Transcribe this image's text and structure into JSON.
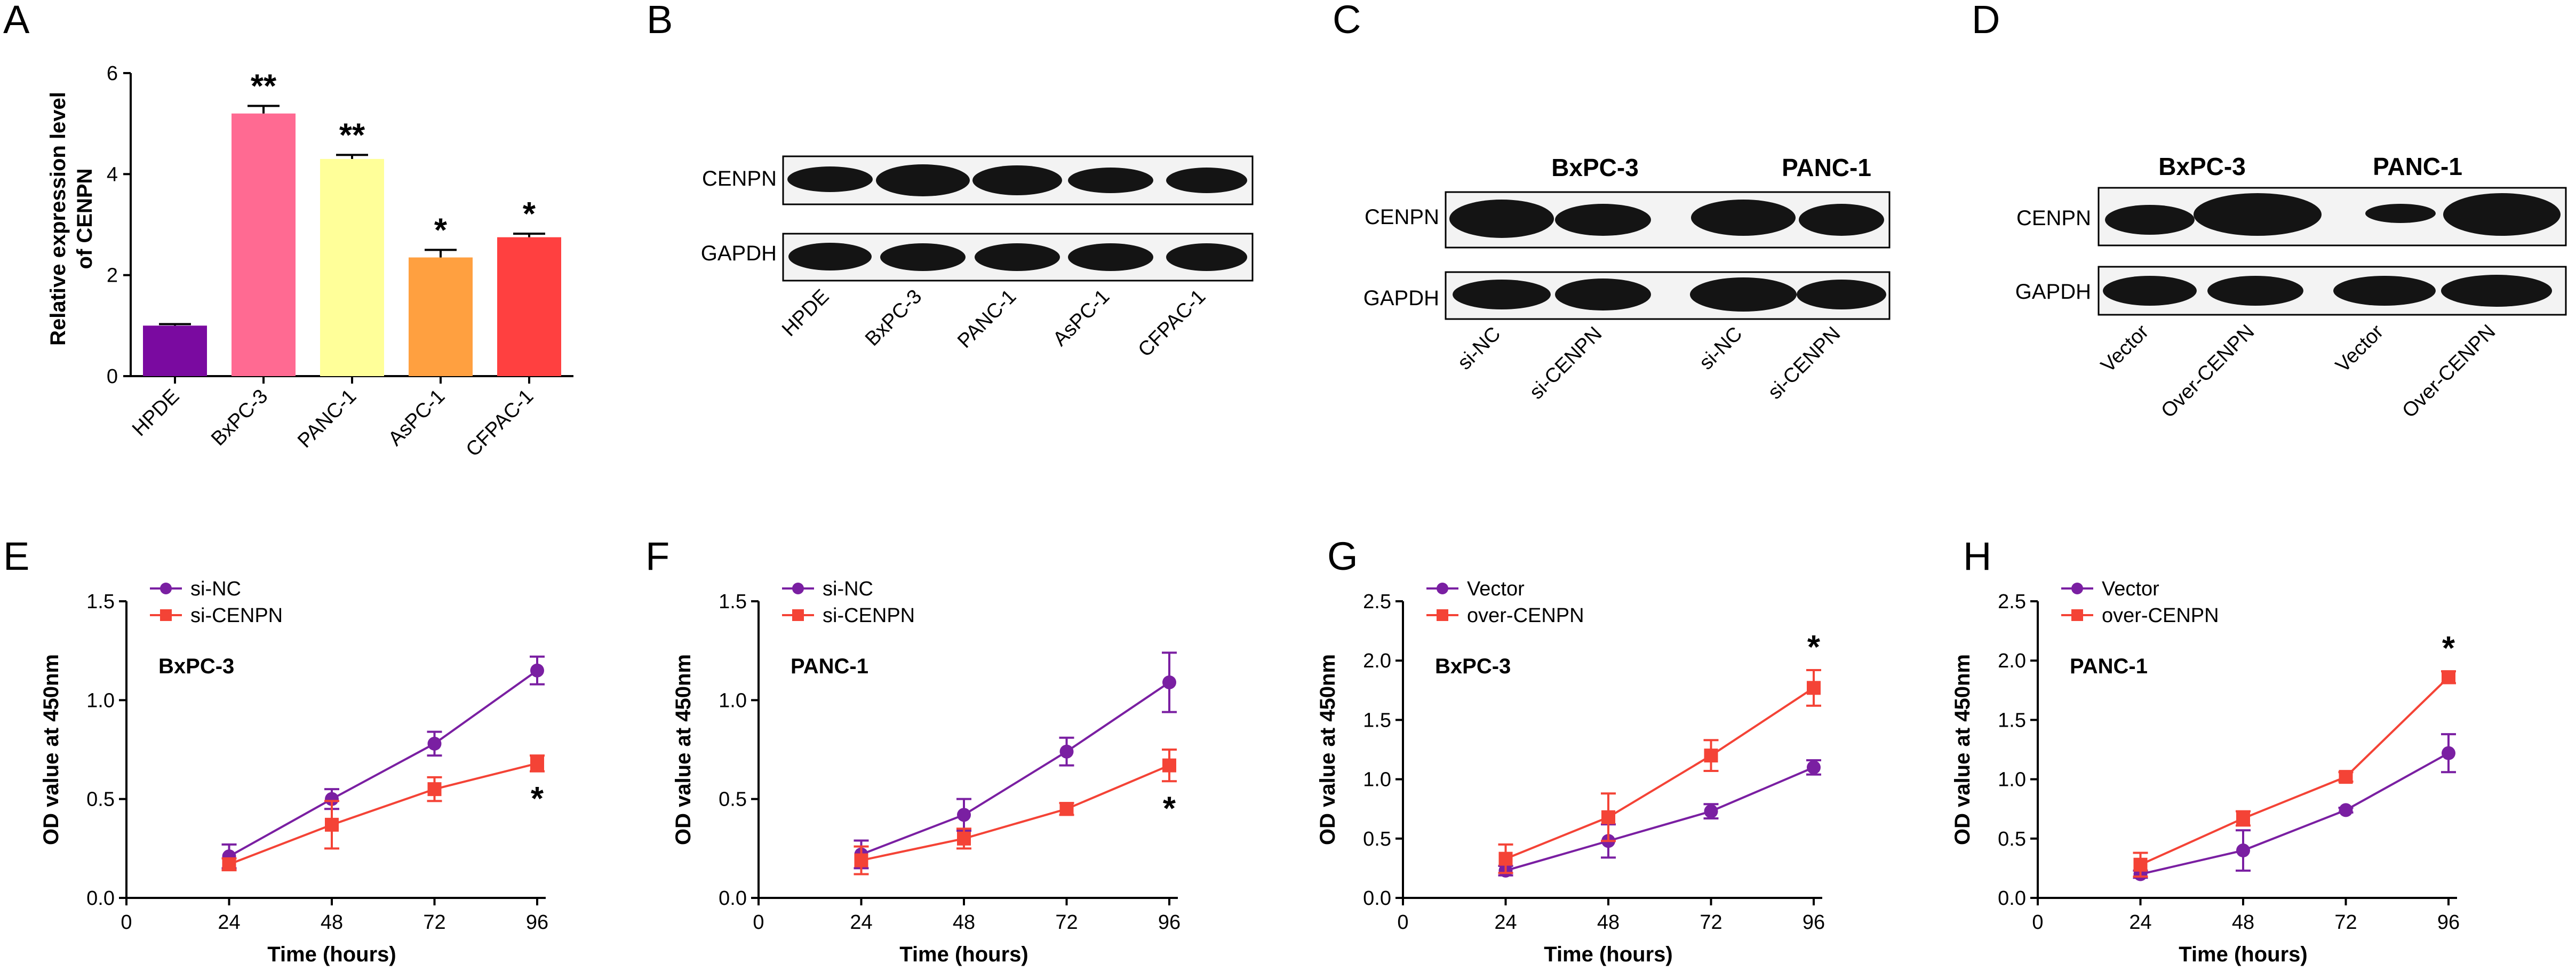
{
  "panels": {
    "A": {
      "letter": "A",
      "type": "bar",
      "ylabel_line1": "Relative expression level",
      "ylabel_line2": "of CENPN",
      "categories": [
        "HPDE",
        "BxPC-3",
        "PANC-1",
        "AsPC-1",
        "CFPAC-1"
      ],
      "values": [
        1.0,
        5.2,
        4.3,
        2.35,
        2.75
      ],
      "errors": [
        0.03,
        0.15,
        0.08,
        0.15,
        0.07
      ],
      "colors": [
        "#7a0aa0",
        "#ff6a92",
        "#ffff99",
        "#ffa040",
        "#ff4040"
      ],
      "significance": [
        "",
        "**",
        "**",
        "*",
        "*"
      ],
      "ylim": [
        0,
        6
      ],
      "yticks": [
        "0",
        "2",
        "4",
        "6"
      ]
    },
    "B": {
      "letter": "B",
      "proteins": [
        "CENPN",
        "GAPDH"
      ],
      "lanes": [
        "HPDE",
        "BxPC-3",
        "PANC-1",
        "AsPC-1",
        "CFPAC-1"
      ]
    },
    "C": {
      "letter": "C",
      "cell_lines": [
        "BxPC-3",
        "PANC-1"
      ],
      "proteins": [
        "CENPN",
        "GAPDH"
      ],
      "lanes": [
        "si-NC",
        "si-CENPN",
        "si-NC",
        "si-CENPN"
      ]
    },
    "D": {
      "letter": "D",
      "cell_lines": [
        "BxPC-3",
        "PANC-1"
      ],
      "proteins": [
        "CENPN",
        "GAPDH"
      ],
      "lanes": [
        "Vector",
        "Over-CENPN",
        "Vector",
        "Over-CENPN"
      ]
    }
  },
  "chart_data": [
    {
      "panel": "E",
      "type": "line",
      "cell_line": "BxPC-3",
      "xlabel": "Time (hours)",
      "ylabel": "OD value at 450nm",
      "x": [
        24,
        48,
        72,
        96
      ],
      "xticks": [
        "0",
        "24",
        "48",
        "72",
        "96"
      ],
      "yticks": [
        "0.0",
        "0.5",
        "1.0",
        "1.5"
      ],
      "xlim": [
        0,
        96
      ],
      "ylim": [
        0,
        1.5
      ],
      "series": [
        {
          "name": "si-NC",
          "color": "#7a1fa2",
          "marker": "circle",
          "values": [
            0.21,
            0.5,
            0.78,
            1.15
          ],
          "errors": [
            0.06,
            0.05,
            0.06,
            0.07
          ]
        },
        {
          "name": "si-CENPN",
          "color": "#f44336",
          "marker": "square",
          "values": [
            0.17,
            0.37,
            0.55,
            0.68
          ],
          "errors": [
            0.03,
            0.12,
            0.06,
            0.04
          ]
        }
      ],
      "significance": "*"
    },
    {
      "panel": "F",
      "type": "line",
      "cell_line": "PANC-1",
      "xlabel": "Time (hours)",
      "ylabel": "OD value at 450nm",
      "x": [
        24,
        48,
        72,
        96
      ],
      "xticks": [
        "0",
        "24",
        "48",
        "72",
        "96"
      ],
      "yticks": [
        "0.0",
        "0.5",
        "1.0",
        "1.5"
      ],
      "xlim": [
        0,
        96
      ],
      "ylim": [
        0,
        1.5
      ],
      "series": [
        {
          "name": "si-NC",
          "color": "#7a1fa2",
          "marker": "circle",
          "values": [
            0.22,
            0.42,
            0.74,
            1.09
          ],
          "errors": [
            0.07,
            0.08,
            0.07,
            0.15
          ]
        },
        {
          "name": "si-CENPN",
          "color": "#f44336",
          "marker": "square",
          "values": [
            0.19,
            0.3,
            0.45,
            0.67
          ],
          "errors": [
            0.07,
            0.05,
            0.03,
            0.08
          ]
        }
      ],
      "significance": "*"
    },
    {
      "panel": "G",
      "type": "line",
      "cell_line": "BxPC-3",
      "xlabel": "Time (hours)",
      "ylabel": "OD value at 450nm",
      "x": [
        24,
        48,
        72,
        96
      ],
      "xticks": [
        "0",
        "24",
        "48",
        "72",
        "96"
      ],
      "yticks": [
        "0.0",
        "0.5",
        "1.0",
        "1.5",
        "2.0",
        "2.5"
      ],
      "xlim": [
        0,
        96
      ],
      "ylim": [
        0,
        2.5
      ],
      "series": [
        {
          "name": "Vector",
          "color": "#7a1fa2",
          "marker": "circle",
          "values": [
            0.23,
            0.48,
            0.73,
            1.1
          ],
          "errors": [
            0.04,
            0.14,
            0.06,
            0.06
          ]
        },
        {
          "name": "over-CENPN",
          "color": "#f44336",
          "marker": "square",
          "values": [
            0.33,
            0.68,
            1.2,
            1.77
          ],
          "errors": [
            0.12,
            0.2,
            0.13,
            0.15
          ]
        }
      ],
      "significance": "*"
    },
    {
      "panel": "H",
      "type": "line",
      "cell_line": "PANC-1",
      "xlabel": "Time (hours)",
      "ylabel": "OD value at 450nm",
      "x": [
        24,
        48,
        72,
        96
      ],
      "xticks": [
        "0",
        "24",
        "48",
        "72",
        "96"
      ],
      "yticks": [
        "0.0",
        "0.5",
        "1.0",
        "1.5",
        "2.0",
        "2.5"
      ],
      "xlim": [
        0,
        96
      ],
      "ylim": [
        0,
        2.5
      ],
      "series": [
        {
          "name": "Vector",
          "color": "#7a1fa2",
          "marker": "circle",
          "values": [
            0.2,
            0.4,
            0.74,
            1.22
          ],
          "errors": [
            0.03,
            0.17,
            0.02,
            0.16
          ]
        },
        {
          "name": "over-CENPN",
          "color": "#f44336",
          "marker": "square",
          "values": [
            0.28,
            0.67,
            1.02,
            1.86
          ],
          "errors": [
            0.1,
            0.06,
            0.04,
            0.05
          ]
        }
      ],
      "significance": "*"
    }
  ]
}
